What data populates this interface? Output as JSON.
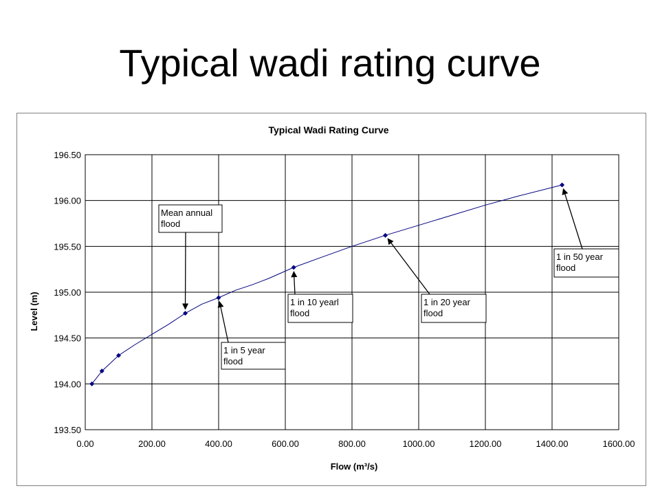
{
  "slide": {
    "title": "Typical wadi rating curve"
  },
  "chart_data": {
    "type": "line",
    "title": "Typical Wadi Rating Curve",
    "xlabel": "Flow (m³/s)",
    "ylabel": "Level (m)",
    "xlim": [
      0,
      1600
    ],
    "ylim": [
      193.5,
      196.5
    ],
    "x_ticks": [
      "0.00",
      "200.00",
      "400.00",
      "600.00",
      "800.00",
      "1000.00",
      "1200.00",
      "1400.00",
      "1600.00"
    ],
    "y_ticks": [
      "193.50",
      "194.00",
      "194.50",
      "195.00",
      "195.50",
      "196.00",
      "196.50"
    ],
    "grid": true,
    "line_color": "#00007f",
    "marker_color": "#00007f",
    "curve": {
      "x": [
        20,
        50,
        100,
        150,
        200,
        250,
        300,
        350,
        400,
        450,
        500,
        550,
        625,
        700,
        800,
        900,
        1000,
        1100,
        1200,
        1300,
        1430
      ],
      "y": [
        194.0,
        194.14,
        194.31,
        194.43,
        194.54,
        194.65,
        194.77,
        194.87,
        194.94,
        195.02,
        195.08,
        195.15,
        195.27,
        195.37,
        195.5,
        195.62,
        195.73,
        195.84,
        195.95,
        196.05,
        196.17
      ]
    },
    "markers": {
      "x": [
        20,
        50,
        100,
        300,
        400,
        625,
        900,
        1430
      ],
      "y": [
        194.0,
        194.14,
        194.31,
        194.77,
        194.94,
        195.27,
        195.62,
        196.17
      ]
    },
    "annotations": [
      {
        "lines": [
          "Mean annual",
          "flood"
        ],
        "target": [
          300,
          194.77
        ]
      },
      {
        "lines": [
          "1 in 5 year",
          "flood"
        ],
        "target": [
          400,
          194.94
        ]
      },
      {
        "lines": [
          "1 in 10 yearl",
          "flood"
        ],
        "target": [
          625,
          195.27
        ]
      },
      {
        "lines": [
          "1 in 20 year",
          "flood"
        ],
        "target": [
          900,
          195.62
        ]
      },
      {
        "lines": [
          "1 in 50 year",
          "flood"
        ],
        "target": [
          1430,
          196.17
        ]
      }
    ]
  }
}
